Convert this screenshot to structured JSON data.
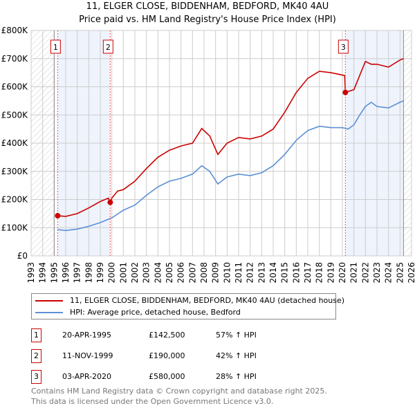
{
  "title_line1": "11, ELGER CLOSE, BIDDENHAM, BEDFORD, MK40 4AU",
  "title_line2": "Price paid vs. HM Land Registry's House Price Index (HPI)",
  "legend": {
    "property_label": "11, ELGER CLOSE, BIDDENHAM, BEDFORD, MK40 4AU (detached house)",
    "hpi_label": "HPI: Average price, detached house, Bedford"
  },
  "transactions": [
    {
      "num": "1",
      "date": "20-APR-1995",
      "price": "£142,500",
      "hpi": "57% ↑ HPI"
    },
    {
      "num": "2",
      "date": "11-NOV-1999",
      "price": "£190,000",
      "hpi": "42% ↑ HPI"
    },
    {
      "num": "3",
      "date": "03-APR-2020",
      "price": "£580,000",
      "hpi": "28% ↑ HPI"
    }
  ],
  "footer_line1": "Contains HM Land Registry data © Crown copyright and database right 2025.",
  "footer_line2": "This data is licensed under the Open Government Licence v3.0.",
  "colors": {
    "property": "#cc0000",
    "hpi": "#5b8fd4",
    "shade": "#eef3fc"
  },
  "chart_data": {
    "type": "line",
    "xlim": [
      1993,
      2026
    ],
    "ylim": [
      0,
      800000
    ],
    "yticks": [
      0,
      100000,
      200000,
      300000,
      400000,
      500000,
      600000,
      700000,
      800000
    ],
    "ytick_labels": [
      "£0",
      "£100K",
      "£200K",
      "£300K",
      "£400K",
      "£500K",
      "£600K",
      "£700K",
      "£800K"
    ],
    "xticks": [
      1993,
      1994,
      1995,
      1996,
      1997,
      1998,
      1999,
      2000,
      2001,
      2002,
      2003,
      2004,
      2005,
      2006,
      2007,
      2008,
      2009,
      2010,
      2011,
      2012,
      2013,
      2014,
      2015,
      2016,
      2017,
      2018,
      2019,
      2020,
      2021,
      2022,
      2023,
      2024,
      2025,
      2026
    ],
    "hatched_ranges": [
      [
        1993,
        1995.0
      ],
      [
        2025.3,
        2026
      ]
    ],
    "shaded_ranges": [
      [
        1995.3,
        1999.86
      ],
      [
        2020.26,
        2025.3
      ]
    ],
    "series": [
      {
        "name": "11, ELGER CLOSE, BIDDENHAM, BEDFORD, MK40 4AU (detached house)",
        "x": [
          1995.3,
          1996,
          1997,
          1998,
          1999,
          1999.7,
          1999.86,
          2000,
          2000.5,
          2001,
          2002,
          2003,
          2004,
          2005,
          2006,
          2007,
          2007.8,
          2008.5,
          2009.2,
          2010,
          2011,
          2012,
          2013,
          2014,
          2015,
          2016,
          2017,
          2018,
          2019,
          2020.2,
          2020.26,
          2021,
          2021.5,
          2022,
          2022.5,
          2023,
          2024,
          2025,
          2025.3
        ],
        "values": [
          142500,
          140000,
          150000,
          170000,
          193000,
          205000,
          190000,
          205000,
          230000,
          235000,
          265000,
          310000,
          350000,
          375000,
          390000,
          400000,
          452000,
          425000,
          360000,
          400000,
          420000,
          415000,
          425000,
          450000,
          510000,
          580000,
          630000,
          655000,
          650000,
          640000,
          580000,
          590000,
          640000,
          690000,
          680000,
          680000,
          670000,
          695000,
          700000
        ]
      },
      {
        "name": "HPI: Average price, detached house, Bedford",
        "x": [
          1995.3,
          1996,
          1997,
          1998,
          1999,
          2000,
          2001,
          2002,
          2003,
          2004,
          2005,
          2006,
          2007,
          2007.8,
          2008.5,
          2009.2,
          2010,
          2011,
          2012,
          2013,
          2014,
          2015,
          2016,
          2017,
          2018,
          2019,
          2020,
          2020.5,
          2021,
          2021.5,
          2022,
          2022.5,
          2023,
          2024,
          2025,
          2025.3
        ],
        "values": [
          93000,
          90000,
          95000,
          105000,
          118000,
          135000,
          162000,
          180000,
          215000,
          245000,
          265000,
          275000,
          290000,
          320000,
          300000,
          255000,
          280000,
          290000,
          285000,
          295000,
          320000,
          360000,
          410000,
          445000,
          460000,
          455000,
          455000,
          450000,
          465000,
          500000,
          530000,
          545000,
          530000,
          525000,
          545000,
          550000
        ]
      }
    ],
    "sales": [
      {
        "label": "1",
        "x": 1995.3,
        "value": 142500
      },
      {
        "label": "2",
        "x": 1999.86,
        "value": 190000
      },
      {
        "label": "3",
        "x": 2020.26,
        "value": 580000
      }
    ]
  }
}
